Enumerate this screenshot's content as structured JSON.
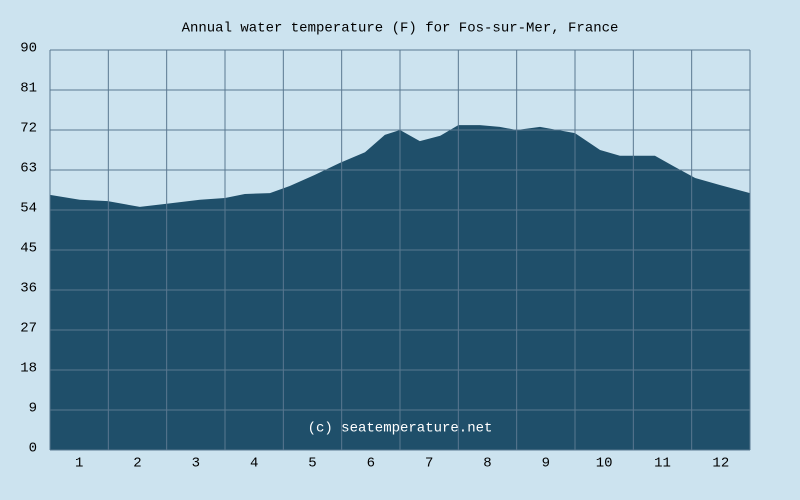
{
  "chart_data": {
    "type": "area",
    "title": "Annual water temperature (F) for Fos-sur-Mer, France",
    "annotation": "(c) seatemperature.net",
    "x": [
      0.5,
      1.01,
      1.49,
      2.04,
      2.5,
      3.07,
      3.5,
      3.84,
      4.27,
      4.61,
      5.04,
      5.47,
      5.9,
      6.24,
      6.5,
      6.84,
      7.19,
      7.5,
      7.87,
      8.21,
      8.5,
      8.9,
      9.5,
      9.93,
      10.27,
      10.61,
      10.87,
      11.21,
      11.56,
      11.99,
      12.5
    ],
    "values": [
      57.4,
      56.3,
      56,
      54.7,
      55.4,
      56.3,
      56.7,
      57.6,
      57.8,
      59.4,
      61.9,
      64.6,
      67,
      70.9,
      72,
      69.5,
      70.7,
      73.1,
      73.1,
      72.7,
      72,
      72.7,
      71.3,
      67.5,
      66.2,
      66.2,
      66.2,
      63.7,
      61.2,
      59.6,
      57.8
    ],
    "color": "#1f4f6a",
    "xlim": [
      0.5,
      12.5
    ],
    "xticks": [
      1,
      2,
      3,
      4,
      5,
      6,
      7,
      8,
      9,
      10,
      11,
      12
    ],
    "ylim": [
      0,
      90
    ],
    "yticks": [
      0,
      9,
      18,
      27,
      36,
      45,
      54,
      63,
      72,
      81,
      90
    ],
    "grid": true
  }
}
